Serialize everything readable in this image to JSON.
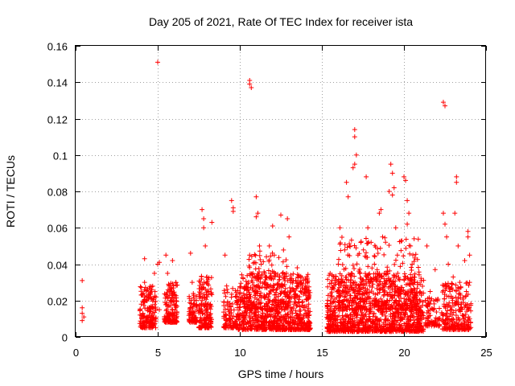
{
  "chart_data": {
    "type": "scatter",
    "title": "Day 205 of 2021, Rate Of TEC Index for receiver ista",
    "xlabel": "GPS time / hours",
    "ylabel": "ROTI / TECUs",
    "xlim": [
      0,
      25
    ],
    "ylim": [
      0,
      0.16
    ],
    "xticks": [
      0,
      5,
      10,
      15,
      20,
      25
    ],
    "yticks": [
      0,
      0.02,
      0.04,
      0.06,
      0.08,
      0.1,
      0.12,
      0.14,
      0.16
    ],
    "xtick_labels": [
      "0",
      "5",
      "10",
      "15",
      "20",
      "25"
    ],
    "ytick_labels": [
      "0",
      "0.02",
      "0.04",
      "0.06",
      "0.08",
      "0.1",
      "0.12",
      "0.14",
      "0.16"
    ],
    "grid": true,
    "marker": "plus",
    "series_color": "#ff0000",
    "points": [
      [
        0.4,
        0.031
      ],
      [
        0.4,
        0.016
      ],
      [
        0.4,
        0.013
      ],
      [
        0.5,
        0.011
      ],
      [
        0.4,
        0.009
      ],
      [
        4.0,
        0.018
      ],
      [
        4.1,
        0.013
      ],
      [
        4.2,
        0.043
      ],
      [
        4.2,
        0.03
      ],
      [
        4.3,
        0.02
      ],
      [
        4.4,
        0.015
      ],
      [
        4.1,
        0.008
      ],
      [
        4.6,
        0.026
      ],
      [
        4.8,
        0.035
      ],
      [
        4.7,
        0.012
      ],
      [
        4.5,
        0.006
      ],
      [
        5.0,
        0.151
      ],
      [
        5.0,
        0.04
      ],
      [
        5.1,
        0.041
      ],
      [
        4.9,
        0.022
      ],
      [
        5.1,
        0.015
      ],
      [
        5.5,
        0.045
      ],
      [
        5.6,
        0.035
      ],
      [
        5.7,
        0.028
      ],
      [
        5.8,
        0.02
      ],
      [
        5.9,
        0.015
      ],
      [
        6.0,
        0.012
      ],
      [
        5.6,
        0.01
      ],
      [
        5.9,
        0.042
      ],
      [
        6.1,
        0.03
      ],
      [
        7.0,
        0.046
      ],
      [
        7.1,
        0.03
      ],
      [
        7.2,
        0.018
      ],
      [
        7.2,
        0.013
      ],
      [
        7.3,
        0.009
      ],
      [
        7.7,
        0.07
      ],
      [
        7.8,
        0.065
      ],
      [
        7.8,
        0.06
      ],
      [
        7.9,
        0.05
      ],
      [
        7.6,
        0.03
      ],
      [
        7.7,
        0.02
      ],
      [
        7.8,
        0.01
      ],
      [
        8.0,
        0.033
      ],
      [
        8.1,
        0.025
      ],
      [
        8.2,
        0.018
      ],
      [
        8.1,
        0.009
      ],
      [
        8.3,
        0.063
      ],
      [
        9.1,
        0.045
      ],
      [
        9.2,
        0.028
      ],
      [
        9.3,
        0.015
      ],
      [
        9.4,
        0.01
      ],
      [
        9.5,
        0.075
      ],
      [
        9.6,
        0.071
      ],
      [
        9.6,
        0.069
      ],
      [
        9.8,
        0.022
      ],
      [
        9.9,
        0.012
      ],
      [
        10.1,
        0.02
      ],
      [
        10.2,
        0.032
      ],
      [
        10.4,
        0.018
      ],
      [
        10.5,
        0.026
      ],
      [
        10.6,
        0.141
      ],
      [
        10.6,
        0.139
      ],
      [
        10.7,
        0.137
      ],
      [
        10.6,
        0.045
      ],
      [
        10.8,
        0.035
      ],
      [
        11.0,
        0.077
      ],
      [
        11.1,
        0.068
      ],
      [
        11.0,
        0.066
      ],
      [
        11.2,
        0.05
      ],
      [
        11.3,
        0.04
      ],
      [
        11.1,
        0.025
      ],
      [
        11.4,
        0.015
      ],
      [
        11.5,
        0.01
      ],
      [
        11.6,
        0.033
      ],
      [
        11.8,
        0.05
      ],
      [
        12.0,
        0.061
      ],
      [
        12.1,
        0.045
      ],
      [
        12.2,
        0.02
      ],
      [
        12.3,
        0.013
      ],
      [
        12.5,
        0.067
      ],
      [
        12.6,
        0.035
      ],
      [
        12.7,
        0.015
      ],
      [
        12.9,
        0.065
      ],
      [
        13.0,
        0.055
      ],
      [
        13.1,
        0.03
      ],
      [
        13.3,
        0.018
      ],
      [
        13.5,
        0.038
      ],
      [
        13.7,
        0.025
      ],
      [
        13.9,
        0.012
      ],
      [
        14.0,
        0.028
      ],
      [
        14.2,
        0.018
      ],
      [
        15.5,
        0.015
      ],
      [
        15.7,
        0.012
      ],
      [
        15.8,
        0.03
      ],
      [
        16.0,
        0.04
      ],
      [
        16.1,
        0.06
      ],
      [
        16.1,
        0.051
      ],
      [
        16.3,
        0.025
      ],
      [
        16.5,
        0.085
      ],
      [
        16.6,
        0.077
      ],
      [
        16.7,
        0.05
      ],
      [
        16.8,
        0.035
      ],
      [
        16.9,
        0.02
      ],
      [
        17.0,
        0.114
      ],
      [
        17.0,
        0.11
      ],
      [
        17.1,
        0.1
      ],
      [
        17.0,
        0.095
      ],
      [
        16.9,
        0.093
      ],
      [
        17.2,
        0.045
      ],
      [
        17.3,
        0.025
      ],
      [
        17.4,
        0.012
      ],
      [
        17.5,
        0.005
      ],
      [
        17.7,
        0.088
      ],
      [
        17.8,
        0.06
      ],
      [
        17.9,
        0.03
      ],
      [
        18.0,
        0.052
      ],
      [
        18.2,
        0.04
      ],
      [
        18.3,
        0.02
      ],
      [
        18.5,
        0.068
      ],
      [
        18.6,
        0.07
      ],
      [
        18.7,
        0.055
      ],
      [
        18.8,
        0.035
      ],
      [
        19.0,
        0.02
      ],
      [
        19.1,
        0.08
      ],
      [
        19.2,
        0.095
      ],
      [
        19.3,
        0.09
      ],
      [
        19.4,
        0.082
      ],
      [
        19.3,
        0.078
      ],
      [
        19.5,
        0.06
      ],
      [
        19.6,
        0.045
      ],
      [
        19.8,
        0.025
      ],
      [
        20.0,
        0.012
      ],
      [
        20.0,
        0.088
      ],
      [
        20.1,
        0.086
      ],
      [
        20.2,
        0.075
      ],
      [
        20.3,
        0.068
      ],
      [
        20.2,
        0.062
      ],
      [
        20.4,
        0.05
      ],
      [
        20.5,
        0.04
      ],
      [
        20.6,
        0.03
      ],
      [
        20.8,
        0.018
      ],
      [
        21.0,
        0.01
      ],
      [
        21.4,
        0.05
      ],
      [
        21.6,
        0.025
      ],
      [
        21.8,
        0.015
      ],
      [
        21.9,
        0.037
      ],
      [
        22.4,
        0.129
      ],
      [
        22.5,
        0.127
      ],
      [
        22.4,
        0.068
      ],
      [
        22.5,
        0.062
      ],
      [
        22.6,
        0.055
      ],
      [
        22.7,
        0.04
      ],
      [
        22.8,
        0.025
      ],
      [
        22.9,
        0.015
      ],
      [
        23.0,
        0.033
      ],
      [
        23.1,
        0.068
      ],
      [
        23.2,
        0.088
      ],
      [
        23.2,
        0.085
      ],
      [
        23.3,
        0.05
      ],
      [
        23.4,
        0.03
      ],
      [
        23.5,
        0.018
      ],
      [
        23.6,
        0.01
      ],
      [
        23.7,
        0.042
      ],
      [
        23.8,
        0.025
      ],
      [
        23.9,
        0.055
      ],
      [
        23.9,
        0.058
      ],
      [
        24.0,
        0.045
      ],
      [
        24.0,
        0.03
      ],
      [
        23.9,
        0.015
      ],
      [
        24.0,
        0.01
      ]
    ],
    "clusters": [
      {
        "x": [
          3.9,
          4.9
        ],
        "y": [
          0.005,
          0.028
        ],
        "n": 170
      },
      {
        "x": [
          5.4,
          6.2
        ],
        "y": [
          0.008,
          0.03
        ],
        "n": 140
      },
      {
        "x": [
          6.9,
          7.4
        ],
        "y": [
          0.008,
          0.025
        ],
        "n": 70
      },
      {
        "x": [
          7.5,
          8.3
        ],
        "y": [
          0.005,
          0.035
        ],
        "n": 150
      },
      {
        "x": [
          9.0,
          9.9
        ],
        "y": [
          0.005,
          0.028
        ],
        "n": 110
      },
      {
        "x": [
          9.9,
          14.3
        ],
        "y": [
          0.004,
          0.035
        ],
        "n": 820
      },
      {
        "x": [
          10.5,
          13.0
        ],
        "y": [
          0.015,
          0.048
        ],
        "n": 120
      },
      {
        "x": [
          15.3,
          21.2
        ],
        "y": [
          0.003,
          0.035
        ],
        "n": 1150
      },
      {
        "x": [
          16.0,
          21.0
        ],
        "y": [
          0.015,
          0.055
        ],
        "n": 260
      },
      {
        "x": [
          21.3,
          22.2
        ],
        "y": [
          0.006,
          0.022
        ],
        "n": 80
      },
      {
        "x": [
          22.3,
          24.1
        ],
        "y": [
          0.004,
          0.03
        ],
        "n": 230
      }
    ]
  }
}
